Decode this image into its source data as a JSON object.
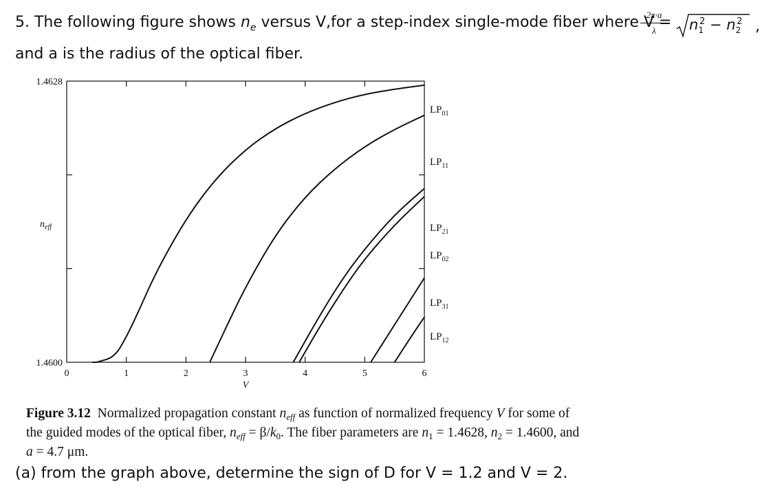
{
  "question": {
    "lead": "5. The following figure shows ",
    "sym_n": "n",
    "sym_e": "e",
    "mid": " versus V,for a step-index single-mode fiber where V =",
    "frac_num": "2π·a",
    "frac_den": "λ",
    "sqrt_n1": "n",
    "sqrt_1": "1",
    "sqrt_n2": "n",
    "sqrt_2": "2",
    "sq": "2",
    "minus": " − ",
    "comma": ",",
    "line2": "and a is the radius of the optical fiber."
  },
  "chart_data": {
    "type": "line",
    "xlabel": "V",
    "ylabel": "n_eff",
    "xlim": [
      0,
      6
    ],
    "ylim": [
      1.46,
      1.4628
    ],
    "x_ticks": [
      "0",
      "1",
      "2",
      "3",
      "4",
      "5",
      "6"
    ],
    "y_ticks": [
      "1.4600",
      "1.4628"
    ],
    "ylabel_main": "n",
    "ylabel_sub": "eff",
    "series": [
      {
        "name": "LP01",
        "label": "LP",
        "sub": "01",
        "x": [
          0.5,
          0.8,
          1.0,
          1.2,
          1.5,
          2.0,
          2.5,
          3.0,
          3.5,
          4.0,
          4.5,
          5.0,
          5.5,
          6.0
        ],
        "y": [
          1.46,
          1.46005,
          1.46025,
          1.4605,
          1.4609,
          1.46143,
          1.46183,
          1.46212,
          1.46233,
          1.46248,
          1.46259,
          1.46267,
          1.46272,
          1.46276
        ]
      },
      {
        "name": "LP11",
        "label": "LP",
        "sub": "11",
        "x": [
          2.4,
          2.7,
          3.0,
          3.5,
          4.0,
          4.5,
          5.0,
          5.5,
          6.0
        ],
        "y": [
          1.46,
          1.46038,
          1.46075,
          1.46127,
          1.46165,
          1.46193,
          1.46215,
          1.46232,
          1.46246
        ]
      },
      {
        "name": "LP21",
        "label": "LP",
        "sub": "21",
        "x": [
          3.8,
          4.2,
          4.6,
          5.0,
          5.5,
          6.0
        ],
        "y": [
          1.46,
          1.46042,
          1.46081,
          1.46113,
          1.46147,
          1.46173
        ]
      },
      {
        "name": "LP02",
        "label": "LP",
        "sub": "02",
        "x": [
          3.9,
          4.3,
          4.7,
          5.0,
          5.5,
          6.0
        ],
        "y": [
          1.46,
          1.46041,
          1.46078,
          1.46103,
          1.46137,
          1.46165
        ]
      },
      {
        "name": "LP31",
        "label": "LP",
        "sub": "31",
        "x": [
          5.1,
          5.4,
          5.7,
          6.0
        ],
        "y": [
          1.46,
          1.46028,
          1.46056,
          1.46084
        ]
      },
      {
        "name": "LP12",
        "label": "LP",
        "sub": "12",
        "x": [
          5.5,
          5.75,
          6.0
        ],
        "y": [
          1.46,
          1.46023,
          1.46045
        ]
      }
    ]
  },
  "caption": {
    "fig": "Figure 3.12",
    "t1": "  Normalized propagation constant ",
    "neff_n": "n",
    "neff_sub": "eff",
    "t2": " as function of normalized frequency ",
    "v": "V",
    "t3": " for some of",
    "l2a": "the guided modes of the optical fiber, ",
    "l2b": " = β/",
    "k": "k",
    "k_sub": "0",
    "l2c": ". The fiber parameters are ",
    "n1_val": " = 1.4628, ",
    "n2_val": " = 1.4600, and",
    "a": "a",
    "a_val": " = 4.7 μm.",
    "one": "1",
    "two": "2"
  },
  "part_a": "(a) from the graph above, determine the sign of D for V = 1.2 and V = 2."
}
